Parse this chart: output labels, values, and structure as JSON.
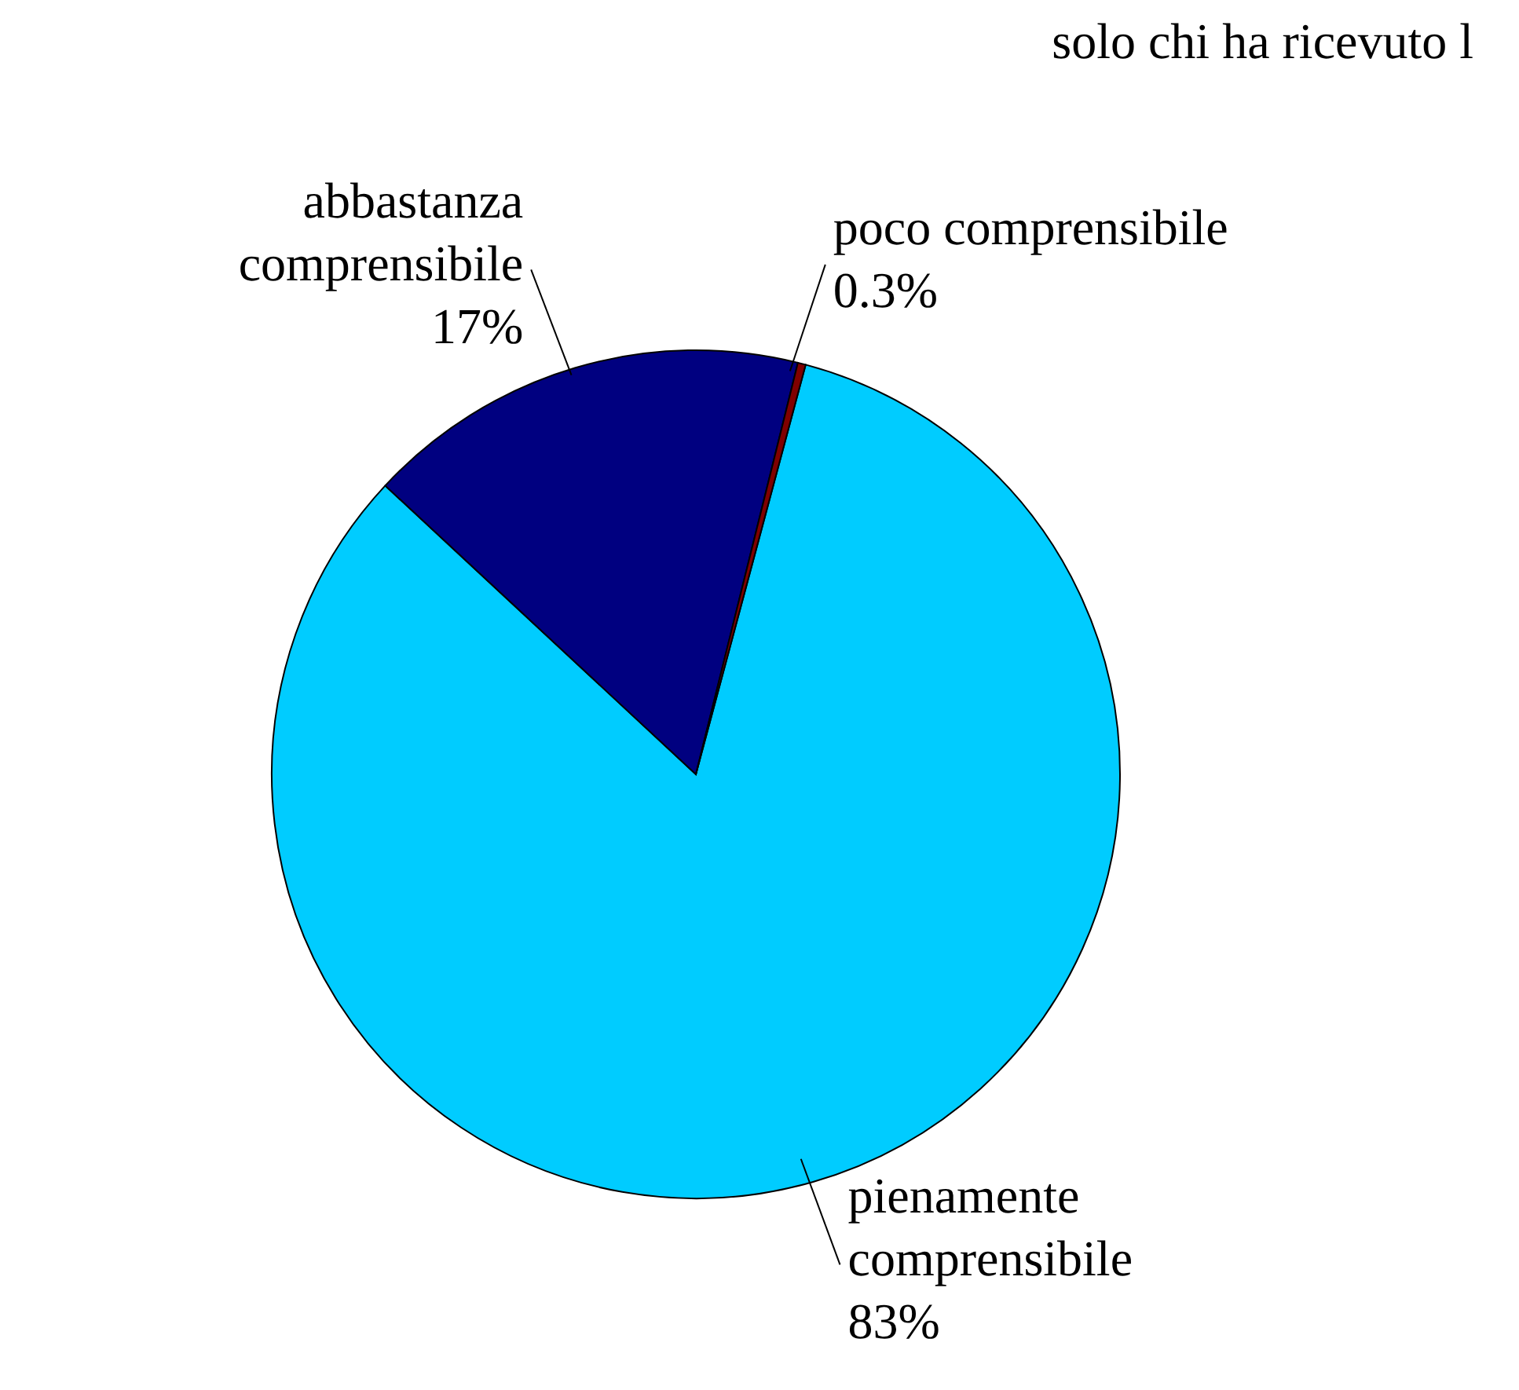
{
  "chart_data": {
    "type": "pie",
    "title": "solo chi ha ricevuto l",
    "categories": [
      "pienamente comprensibile",
      "abbastanza comprensibile",
      "poco comprensibile"
    ],
    "values": [
      83,
      17,
      0.3
    ],
    "colors": [
      "#00ccff",
      "#000080",
      "#800000"
    ],
    "value_labels": [
      "83%",
      "17%",
      "0.3%"
    ],
    "legend": false
  }
}
